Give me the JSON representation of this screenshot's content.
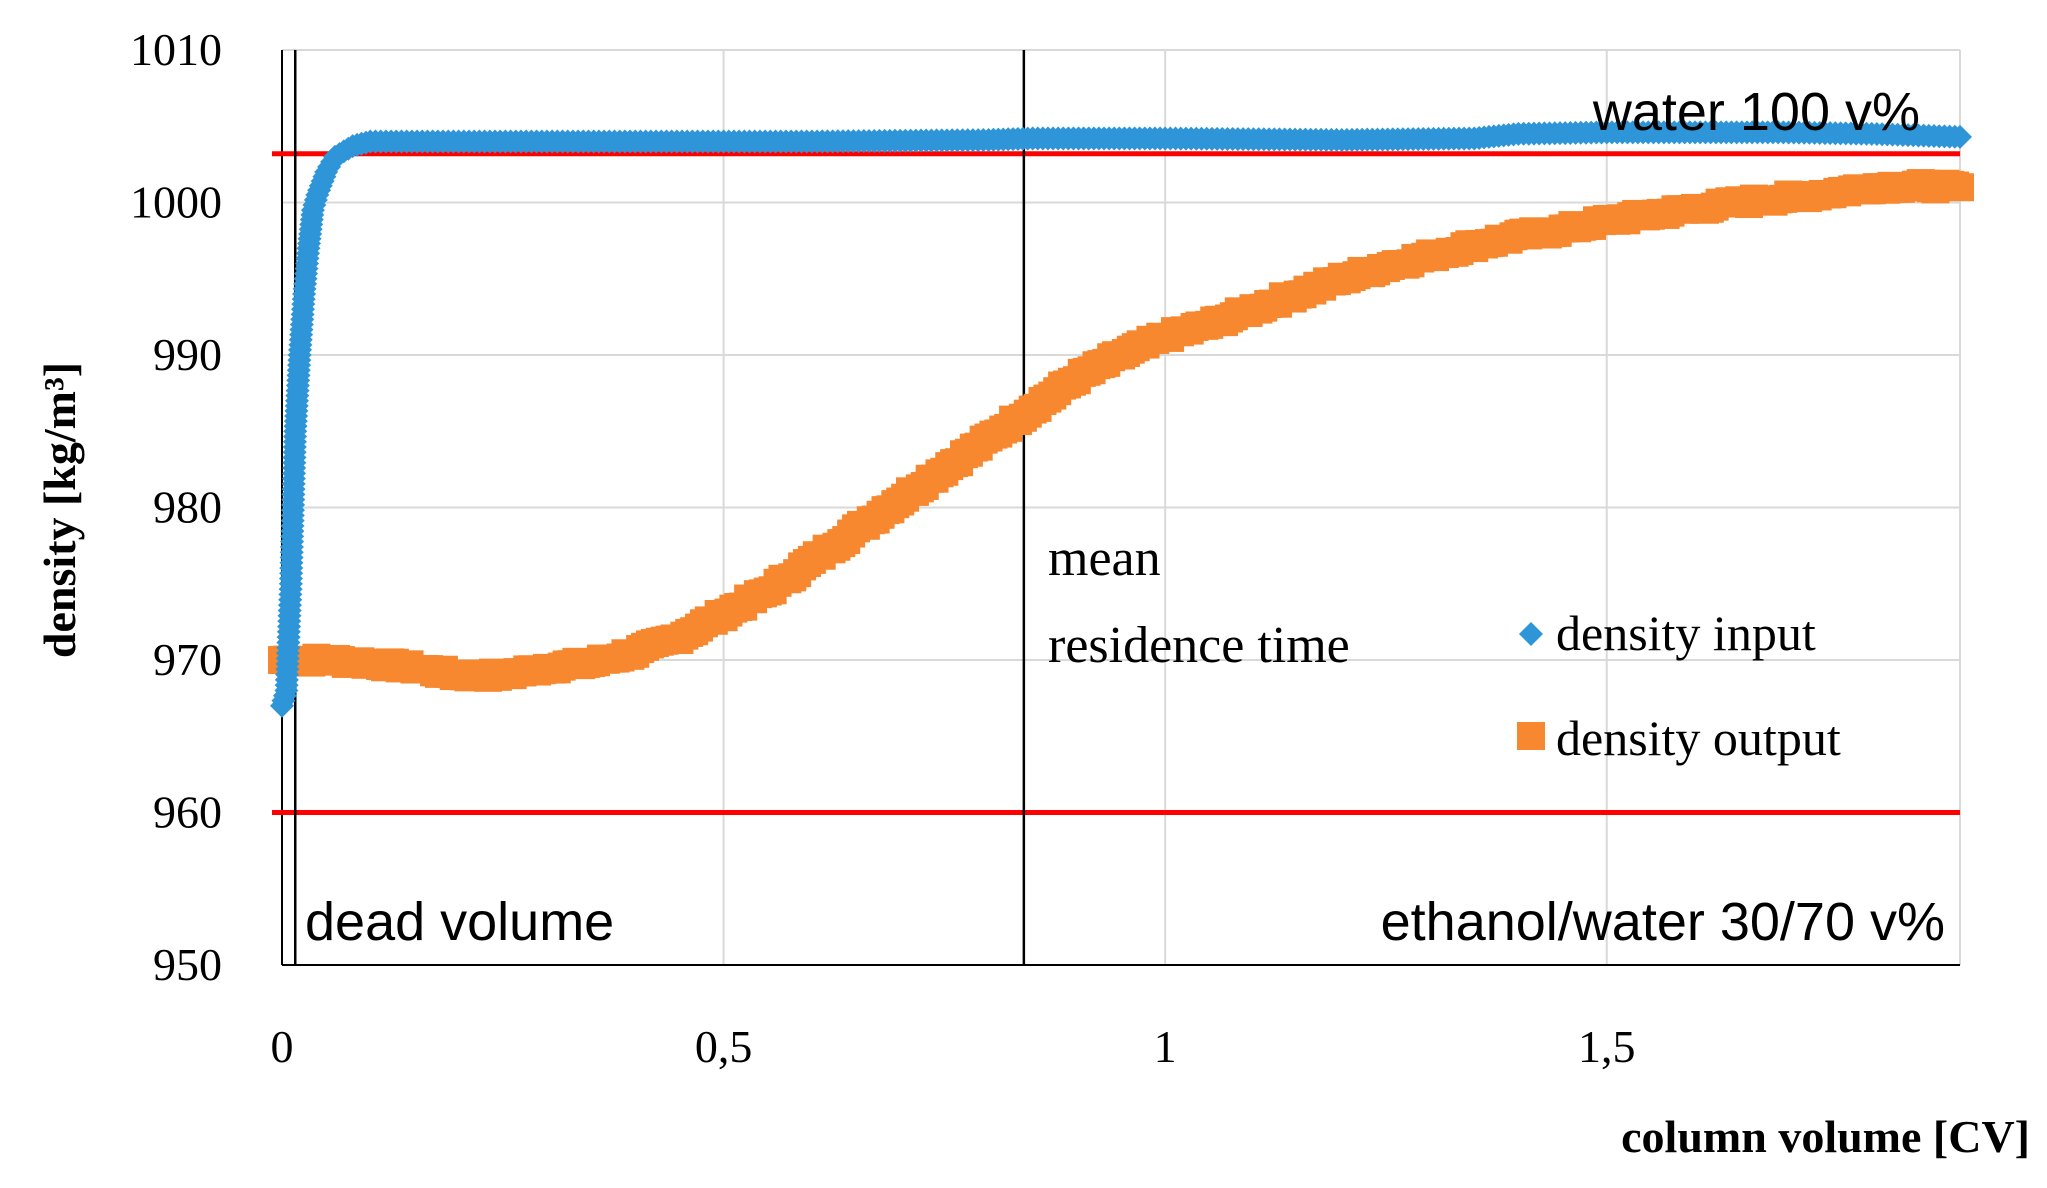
{
  "chart_data": {
    "type": "scatter",
    "title": "",
    "xlabel": "column volume [CV]",
    "ylabel": "density [kg/m³]",
    "xlim": [
      0,
      1.9
    ],
    "ylim": [
      950,
      1010
    ],
    "x_ticks": [
      {
        "value": 0,
        "label": "0"
      },
      {
        "value": 0.5,
        "label": "0,5"
      },
      {
        "value": 1,
        "label": "1"
      },
      {
        "value": 1.5,
        "label": "1,5"
      }
    ],
    "y_ticks": [
      {
        "value": 950,
        "label": "950"
      },
      {
        "value": 960,
        "label": "960"
      },
      {
        "value": 970,
        "label": "970"
      },
      {
        "value": 980,
        "label": "980"
      },
      {
        "value": 990,
        "label": "990"
      },
      {
        "value": 1000,
        "label": "1000"
      },
      {
        "value": 1010,
        "label": "1010"
      }
    ],
    "grid": true,
    "series": [
      {
        "name": "density input",
        "marker": "diamond",
        "color": "#2E96D8",
        "x": [
          0.0,
          0.005,
          0.01,
          0.015,
          0.02,
          0.025,
          0.03,
          0.035,
          0.04,
          0.05,
          0.06,
          0.08,
          0.1,
          0.2,
          0.4,
          0.6,
          0.8,
          0.85,
          1.0,
          1.2,
          1.35,
          1.4,
          1.5,
          1.6,
          1.7,
          1.8,
          1.9
        ],
        "y": [
          967,
          968,
          975,
          985,
          990,
          994,
          997,
          999.5,
          1000.5,
          1002,
          1003,
          1003.7,
          1004,
          1004,
          1004,
          1004,
          1004.1,
          1004.2,
          1004.2,
          1004.1,
          1004.2,
          1004.5,
          1004.6,
          1004.6,
          1004.6,
          1004.5,
          1004.3
        ]
      },
      {
        "name": "density output",
        "marker": "square",
        "color": "#F7882F",
        "x": [
          0.0,
          0.05,
          0.1,
          0.15,
          0.2,
          0.25,
          0.3,
          0.35,
          0.4,
          0.45,
          0.5,
          0.55,
          0.6,
          0.65,
          0.7,
          0.75,
          0.8,
          0.85,
          0.9,
          0.95,
          1.0,
          1.05,
          1.1,
          1.15,
          1.2,
          1.25,
          1.3,
          1.35,
          1.4,
          1.45,
          1.5,
          1.55,
          1.6,
          1.65,
          1.7,
          1.75,
          1.8,
          1.85,
          1.9
        ],
        "y": [
          970,
          970,
          969.8,
          969.5,
          969,
          969,
          969.5,
          969.8,
          970.5,
          971.5,
          973,
          974.5,
          976.5,
          978.5,
          980.5,
          982.5,
          984.5,
          986.5,
          988.5,
          990,
          991.2,
          992,
          993,
          994,
          995,
          995.8,
          996.5,
          997.2,
          997.8,
          998.2,
          998.8,
          999.2,
          999.6,
          1000,
          1000.3,
          1000.6,
          1001,
          1001.1,
          1001
        ]
      }
    ],
    "reference_lines": [
      {
        "orientation": "horizontal",
        "value": 1003.2,
        "color": "#FF0000",
        "label": "water 100 v%"
      },
      {
        "orientation": "horizontal",
        "value": 960,
        "color": "#FF0000",
        "label": "ethanol/water 30/70 v%"
      },
      {
        "orientation": "vertical",
        "value": 0.015,
        "color": "#000000",
        "label": "dead volume"
      },
      {
        "orientation": "vertical",
        "value": 0.84,
        "color": "#000000",
        "label_lines": [
          "mean",
          "residence time"
        ]
      }
    ],
    "legend": {
      "placement": "center-right",
      "entries": [
        {
          "label": "density input",
          "marker": "diamond",
          "color": "#2E96D8"
        },
        {
          "label": "density output",
          "marker": "square",
          "color": "#F7882F"
        }
      ]
    }
  }
}
